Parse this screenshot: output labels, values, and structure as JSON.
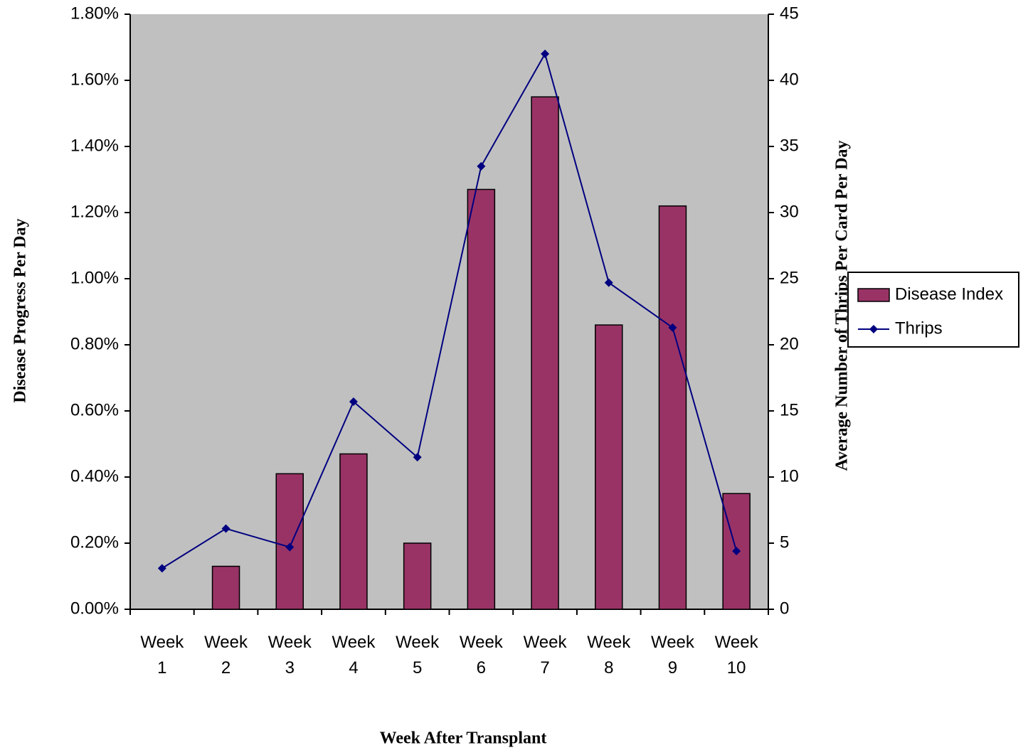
{
  "chart_data": {
    "type": "bar-line",
    "ylabel": "Disease Progress Per Day",
    "y2label": "Average Number of Thrips Per Card Per Day",
    "xlabel": "Week After Transplant",
    "categories": [
      "Week 1",
      "Week 2",
      "Week 3",
      "Week 4",
      "Week 5",
      "Week 6",
      "Week 7",
      "Week 8",
      "Week 9",
      "Week 10"
    ],
    "series": [
      {
        "name": "Disease Index",
        "type": "bar",
        "color": "#993366",
        "values": [
          0,
          0.13,
          0.41,
          0.47,
          0.2,
          1.27,
          1.55,
          0.86,
          1.22,
          0.35
        ]
      },
      {
        "name": "Thrips",
        "type": "line",
        "axis": "y2",
        "color": "#000080",
        "values": [
          3.1,
          6.1,
          4.7,
          15.7,
          11.5,
          33.5,
          42.0,
          24.7,
          21.3,
          4.4
        ]
      }
    ],
    "ylim": [
      0,
      1.8
    ],
    "yticks": [
      {
        "value": 0,
        "label": "0.00%"
      },
      {
        "value": 0.2,
        "label": "0.20%"
      },
      {
        "value": 0.4,
        "label": "0.40%"
      },
      {
        "value": 0.6,
        "label": "0.60%"
      },
      {
        "value": 0.8,
        "label": "0.80%"
      },
      {
        "value": 1.0,
        "label": "1.00%"
      },
      {
        "value": 1.2,
        "label": "1.20%"
      },
      {
        "value": 1.4,
        "label": "1.40%"
      },
      {
        "value": 1.6,
        "label": "1.60%"
      },
      {
        "value": 1.8,
        "label": "1.80%"
      }
    ],
    "y2lim": [
      0,
      45
    ],
    "y2ticks": [
      0,
      5,
      10,
      15,
      20,
      25,
      30,
      35,
      40,
      45
    ],
    "plot_background": "#c0c0c0",
    "legend": "right"
  }
}
